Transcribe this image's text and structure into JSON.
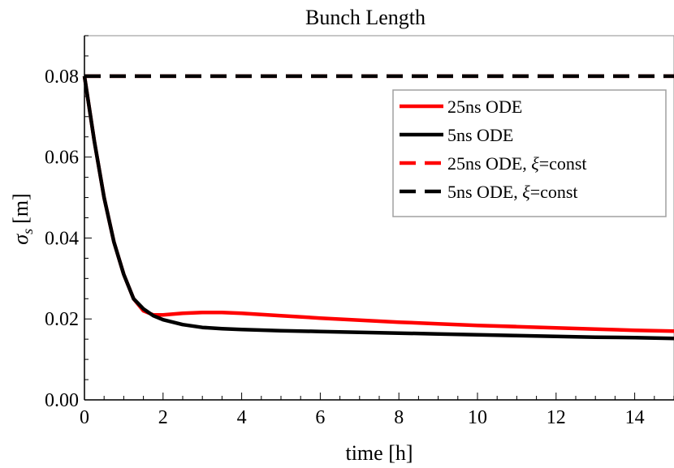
{
  "chart_data": {
    "type": "line",
    "title": "Bunch Length",
    "xlabel": "time [h]",
    "ylabel": "σs [m]",
    "ylabel_symbol": "σ",
    "ylabel_sub": "s",
    "ylabel_unit": "[m]",
    "xlim": [
      0,
      15
    ],
    "ylim": [
      0,
      0.09
    ],
    "xticks": [
      0,
      2,
      4,
      6,
      8,
      10,
      12,
      14
    ],
    "xtick_labels": [
      "0",
      "2",
      "4",
      "6",
      "8",
      "10",
      "12",
      "14"
    ],
    "yticks": [
      0.0,
      0.02,
      0.04,
      0.06,
      0.08
    ],
    "ytick_labels": [
      "0.00",
      "0.02",
      "0.04",
      "0.06",
      "0.08"
    ],
    "grid": false,
    "legend_position": "top-right",
    "series": [
      {
        "name": "25ns ODE",
        "color": "#ff0000",
        "dash": "solid",
        "x": [
          0,
          0.25,
          0.5,
          0.75,
          1.0,
          1.25,
          1.5,
          1.75,
          2.0,
          2.5,
          3.0,
          3.5,
          4.0,
          5.0,
          6.0,
          7.0,
          8.0,
          9.0,
          10.0,
          11.0,
          12.0,
          13.0,
          14.0,
          15.0
        ],
        "y": [
          0.08,
          0.064,
          0.05,
          0.039,
          0.031,
          0.025,
          0.022,
          0.021,
          0.021,
          0.0214,
          0.0216,
          0.0216,
          0.0214,
          0.0208,
          0.0202,
          0.0197,
          0.0192,
          0.0188,
          0.0184,
          0.0181,
          0.0178,
          0.0175,
          0.0172,
          0.017
        ]
      },
      {
        "name": "5ns ODE",
        "color": "#000000",
        "dash": "solid",
        "x": [
          0,
          0.25,
          0.5,
          0.75,
          1.0,
          1.25,
          1.5,
          1.75,
          2.0,
          2.5,
          3.0,
          3.5,
          4.0,
          5.0,
          6.0,
          7.0,
          8.0,
          9.0,
          10.0,
          11.0,
          12.0,
          13.0,
          14.0,
          15.0
        ],
        "y": [
          0.08,
          0.064,
          0.05,
          0.039,
          0.031,
          0.025,
          0.0225,
          0.0208,
          0.0198,
          0.0186,
          0.0179,
          0.0176,
          0.0174,
          0.0171,
          0.0169,
          0.0167,
          0.0165,
          0.0163,
          0.0161,
          0.0159,
          0.0157,
          0.0155,
          0.0154,
          0.0152
        ]
      },
      {
        "name": "25ns ODE, ξ=const",
        "label_prefix": "25ns ODE, ",
        "label_symbol": "ξ",
        "label_suffix": "=const",
        "color": "#ff0000",
        "dash": "dashed",
        "x": [
          0,
          15
        ],
        "y": [
          0.08,
          0.08
        ]
      },
      {
        "name": "5ns ODE, ξ=const",
        "label_prefix": "5ns ODE, ",
        "label_symbol": "ξ",
        "label_suffix": "=const",
        "color": "#000000",
        "dash": "dashed",
        "x": [
          0,
          15
        ],
        "y": [
          0.08,
          0.08
        ]
      }
    ]
  }
}
